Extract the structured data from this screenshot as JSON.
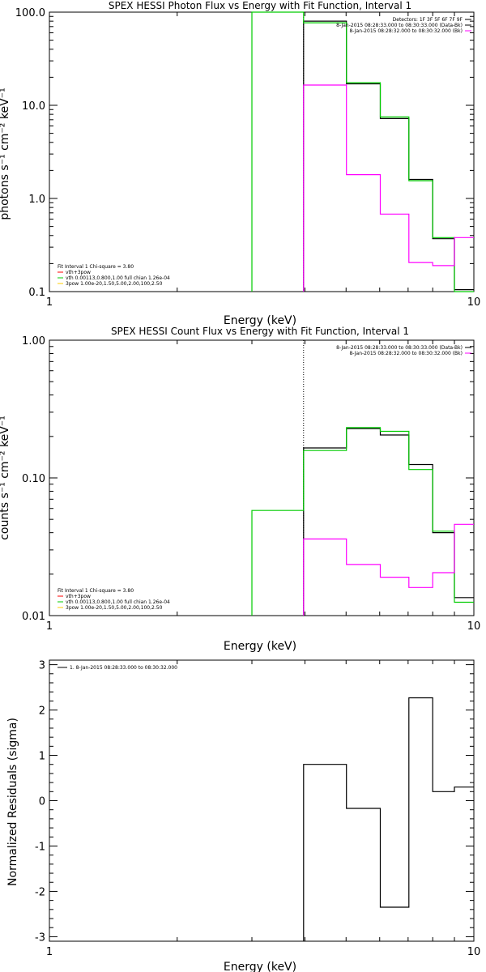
{
  "colors": {
    "data": "#000000",
    "model_total": "#00cc00",
    "background": "#ff00ff",
    "component_vth": "#ff0000",
    "component_3pow": "#ffcc00",
    "frame": "#000000"
  },
  "chart_data": [
    {
      "type": "line",
      "title": "SPEX HESSI Photon Flux vs Energy with Fit Function, Interval 1",
      "xlabel": "Energy (keV)",
      "ylabel": "photons s⁻¹ cm⁻² keV⁻¹",
      "xscale": "log",
      "yscale": "log",
      "xlim": [
        1,
        10
      ],
      "ylim": [
        0.1,
        100
      ],
      "x_ticks": [
        "1",
        "10"
      ],
      "y_ticks": [
        {
          "v": 0.1,
          "label": "0.1"
        },
        {
          "v": 1,
          "label": "1.0"
        },
        {
          "v": 10,
          "label": "10.0"
        },
        {
          "v": 100,
          "label": "100.0"
        }
      ],
      "legend_top": [
        {
          "text": "Detectors: 1F 3F 5F 6F 7F 9F",
          "color": "#000000"
        },
        {
          "text": "8-Jan-2015 08:28:33.000 to 08:30:33.000 (Data-Bk)",
          "color": "#000000"
        },
        {
          "text": "8-Jan-2015 08:28:32.000 to 08:30:32.000 (Bk)",
          "color": "#ff00ff"
        }
      ],
      "legend_bottom": [
        {
          "text": "Fit Interval 1   Chi-square = 3.80",
          "color": null
        },
        {
          "text": "vth+3pow",
          "color": "#ff0000"
        },
        {
          "text": "vth 0.00113,0.800,1.00   full chian 1.26e-04",
          "color": "#00cc00"
        },
        {
          "text": "3pow 1.00e-20,1.50,5.00,2.00,100,2.50",
          "color": "#ffcc00"
        }
      ],
      "vline_x": 3.97,
      "series": [
        {
          "role": "data",
          "color": "#000000",
          "edges": [
            3.97,
            5.01,
            6.02,
            7.03,
            8.0,
            9.0,
            10.0
          ],
          "values": [
            80,
            17,
            7.2,
            1.6,
            0.37,
            0.105
          ]
        },
        {
          "role": "model",
          "color": "#00cc00",
          "edges": [
            3.0,
            3.97,
            5.01,
            6.02,
            7.03,
            8.0,
            9.0,
            10.0
          ],
          "values": [
            100,
            77,
            17.5,
            7.5,
            1.55,
            0.38,
            0.098
          ]
        },
        {
          "role": "background",
          "color": "#ff00ff",
          "edges": [
            3.97,
            5.01,
            6.02,
            7.03,
            8.0,
            9.0,
            10.0
          ],
          "values": [
            16.5,
            1.8,
            0.68,
            0.205,
            0.19,
            0.38
          ]
        }
      ]
    },
    {
      "type": "line",
      "title": "SPEX HESSI Count Flux vs Energy with Fit Function, Interval 1",
      "xlabel": "Energy (keV)",
      "ylabel": "counts s⁻¹ cm⁻² keV⁻¹",
      "xscale": "log",
      "yscale": "log",
      "xlim": [
        1,
        10
      ],
      "ylim": [
        0.01,
        1.0
      ],
      "x_ticks": [
        "1",
        "10"
      ],
      "y_ticks": [
        {
          "v": 0.01,
          "label": "0.01"
        },
        {
          "v": 0.1,
          "label": "0.10"
        },
        {
          "v": 1.0,
          "label": "1.00"
        }
      ],
      "legend_top": [
        {
          "text": "8-Jan-2015 08:28:33.000 to 08:30:33.000 (Data-Bk)",
          "color": "#000000"
        },
        {
          "text": "8-Jan-2015 08:28:32.000 to 08:30:32.000 (Bk)",
          "color": "#ff00ff"
        }
      ],
      "legend_bottom": [
        {
          "text": "Fit Interval 1   Chi-square = 3.80",
          "color": null
        },
        {
          "text": "vth+3pow",
          "color": "#ff0000"
        },
        {
          "text": "vth 0.00113,0.800,1.00   full chian 1.26e-04",
          "color": "#00cc00"
        },
        {
          "text": "3pow 1.00e-20,1.50,5.00,2.00,100,2.50",
          "color": "#ffcc00"
        }
      ],
      "vline_x": 3.97,
      "series": [
        {
          "role": "data",
          "color": "#000000",
          "edges": [
            3.97,
            5.01,
            6.02,
            7.03,
            8.0,
            9.0,
            10.0
          ],
          "values": [
            0.165,
            0.228,
            0.205,
            0.125,
            0.04,
            0.0135
          ]
        },
        {
          "role": "model",
          "color": "#00cc00",
          "edges": [
            3.0,
            3.97,
            5.01,
            6.02,
            7.03,
            8.0,
            9.0,
            10.0
          ],
          "values": [
            0.058,
            0.158,
            0.232,
            0.218,
            0.115,
            0.041,
            0.0125
          ]
        },
        {
          "role": "background",
          "color": "#ff00ff",
          "edges": [
            3.97,
            5.01,
            6.02,
            7.03,
            8.0,
            9.0,
            10.0
          ],
          "values": [
            0.036,
            0.0235,
            0.019,
            0.016,
            0.0205,
            0.046
          ]
        }
      ]
    },
    {
      "type": "line",
      "title": "",
      "xlabel": "Energy (keV)",
      "ylabel": "Normalized Residuals (sigma)",
      "xscale": "log",
      "yscale": "linear",
      "xlim": [
        1,
        10
      ],
      "ylim": [
        -3.1,
        3.1
      ],
      "x_ticks": [
        "1",
        "10"
      ],
      "y_ticks": [
        {
          "v": -3,
          "label": "-3"
        },
        {
          "v": -2,
          "label": "-2"
        },
        {
          "v": -1,
          "label": "-1"
        },
        {
          "v": 0,
          "label": "0"
        },
        {
          "v": 1,
          "label": "1"
        },
        {
          "v": 2,
          "label": "2"
        },
        {
          "v": 3,
          "label": "3"
        }
      ],
      "legend_top": [
        {
          "text": "1.  8-Jan-2015 08:28:33.000 to 08:30:32.000",
          "color": "#000000"
        }
      ],
      "legend_bottom": [],
      "vline_x": null,
      "series": [
        {
          "role": "residuals",
          "color": "#000000",
          "edges": [
            3.97,
            5.01,
            6.02,
            7.03,
            8.0,
            9.0,
            10.0
          ],
          "values": [
            0.8,
            -0.17,
            -2.35,
            2.27,
            0.2,
            0.3
          ],
          "drop_start_to": -3.1
        }
      ]
    }
  ]
}
